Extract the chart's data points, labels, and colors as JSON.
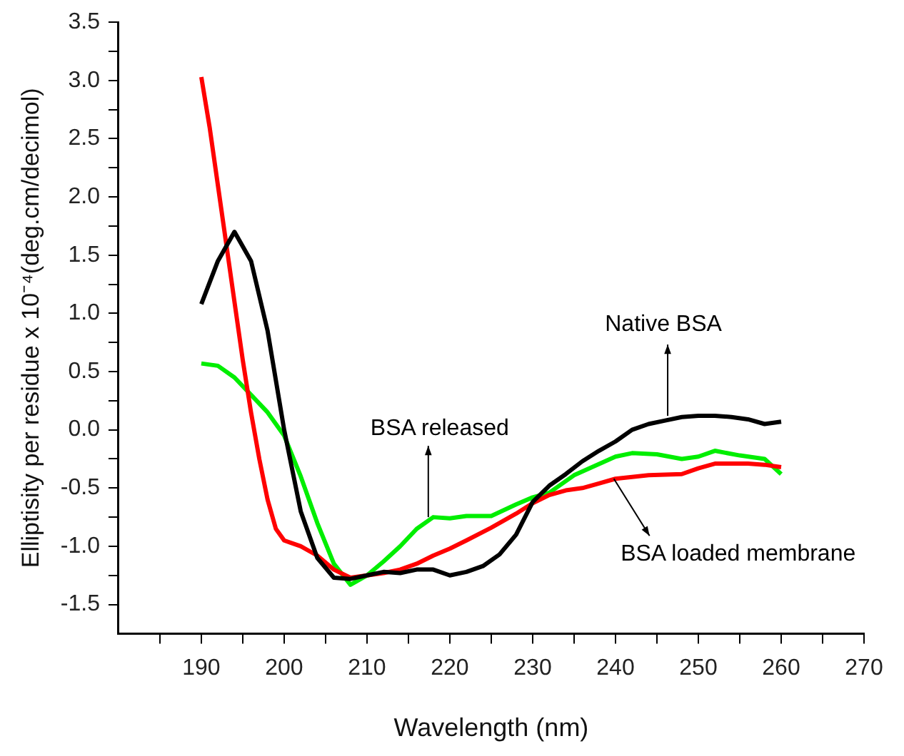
{
  "chart_data": {
    "type": "line",
    "xlabel": "Wavelength (nm)",
    "ylabel": "Elliptisity per residue x 10⁻⁴(deg.cm/decimol)",
    "xlim": [
      180,
      270
    ],
    "ylim": [
      -1.75,
      3.5
    ],
    "xticks": [
      {
        "value": 185,
        "label": null
      },
      190,
      {
        "value": 195,
        "label": null
      },
      200,
      {
        "value": 205,
        "label": null
      },
      210,
      {
        "value": 215,
        "label": null
      },
      220,
      {
        "value": 225,
        "label": null
      },
      230,
      {
        "value": 235,
        "label": null
      },
      240,
      {
        "value": 245,
        "label": null
      },
      250,
      {
        "value": 255,
        "label": null
      },
      260,
      {
        "value": 265,
        "label": null
      },
      270
    ],
    "yticks": [
      {
        "value": -1.5,
        "label": "-1.5"
      },
      {
        "value": -1.25,
        "label": null
      },
      {
        "value": -1,
        "label": "-1.0"
      },
      {
        "value": -0.75,
        "label": null
      },
      {
        "value": -0.5,
        "label": "-0.5"
      },
      {
        "value": -0.25,
        "label": null
      },
      {
        "value": 0,
        "label": "0.0"
      },
      {
        "value": 0.25,
        "label": null
      },
      {
        "value": 0.5,
        "label": "0.5"
      },
      {
        "value": 0.75,
        "label": null
      },
      {
        "value": 1,
        "label": "1.0"
      },
      {
        "value": 1.25,
        "label": null
      },
      {
        "value": 1.5,
        "label": "1.5"
      },
      {
        "value": 1.75,
        "label": null
      },
      {
        "value": 2,
        "label": "2.0"
      },
      {
        "value": 2.25,
        "label": null
      },
      {
        "value": 2.5,
        "label": "2.5"
      },
      {
        "value": 2.75,
        "label": null
      },
      {
        "value": 3,
        "label": "3.0"
      },
      {
        "value": 3.25,
        "label": null
      },
      {
        "value": 3.5,
        "label": "3.5"
      }
    ],
    "grid": false,
    "legend": false,
    "marker": "none",
    "series": [
      {
        "color": "#000000",
        "x": [
          190,
          192,
          194,
          196,
          198,
          200,
          202,
          204,
          206,
          208,
          210,
          212,
          214,
          216,
          218,
          220,
          222,
          224,
          226,
          228,
          230,
          232,
          234,
          236,
          238,
          240,
          242,
          244,
          246,
          248,
          250,
          252,
          254,
          256,
          258,
          260
        ],
        "values": [
          1.08,
          1.45,
          1.7,
          1.45,
          0.85,
          0.0,
          -0.7,
          -1.1,
          -1.27,
          -1.28,
          -1.25,
          -1.22,
          -1.23,
          -1.2,
          -1.2,
          -1.25,
          -1.22,
          -1.17,
          -1.07,
          -0.9,
          -0.62,
          -0.48,
          -0.38,
          -0.27,
          -0.18,
          -0.1,
          0.0,
          0.05,
          0.08,
          0.11,
          0.12,
          0.12,
          0.11,
          0.09,
          0.05,
          0.07
        ]
      },
      {
        "color": "#ff0000",
        "x": [
          190,
          191,
          192,
          193,
          194,
          195,
          196,
          197,
          198,
          199,
          200,
          202,
          204,
          206,
          208,
          210,
          212,
          214,
          216,
          218,
          220,
          222,
          225,
          228,
          230,
          232,
          234,
          236,
          238,
          240,
          244,
          248,
          250,
          252,
          256,
          258,
          260
        ],
        "values": [
          3.03,
          2.6,
          2.1,
          1.6,
          1.1,
          0.6,
          0.15,
          -0.25,
          -0.6,
          -0.85,
          -0.95,
          -1.0,
          -1.08,
          -1.2,
          -1.27,
          -1.25,
          -1.23,
          -1.2,
          -1.15,
          -1.08,
          -1.02,
          -0.95,
          -0.84,
          -0.72,
          -0.63,
          -0.56,
          -0.52,
          -0.5,
          -0.46,
          -0.42,
          -0.39,
          -0.38,
          -0.33,
          -0.29,
          -0.29,
          -0.3,
          -0.32
        ]
      },
      {
        "color": "#00ee00",
        "x": [
          190,
          192,
          194,
          196,
          198,
          200,
          202,
          204,
          206,
          208,
          210,
          212,
          214,
          216,
          218,
          220,
          222,
          225,
          228,
          230,
          232,
          235,
          240,
          242,
          245,
          248,
          250,
          252,
          255,
          258,
          260
        ],
        "values": [
          0.57,
          0.55,
          0.45,
          0.3,
          0.15,
          -0.05,
          -0.4,
          -0.8,
          -1.15,
          -1.33,
          -1.25,
          -1.13,
          -1.0,
          -0.85,
          -0.75,
          -0.76,
          -0.74,
          -0.74,
          -0.64,
          -0.58,
          -0.54,
          -0.39,
          -0.23,
          -0.2,
          -0.21,
          -0.25,
          -0.23,
          -0.18,
          -0.22,
          -0.25,
          -0.38
        ]
      }
    ],
    "annotations": [
      {
        "text": "Native BSA",
        "x": 246.3,
        "y": 0.12
      },
      {
        "text": "BSA released",
        "x": 217.4,
        "y": -0.75
      },
      {
        "text": "BSA loaded membrane",
        "x": 239.8,
        "y": -0.42
      }
    ]
  }
}
